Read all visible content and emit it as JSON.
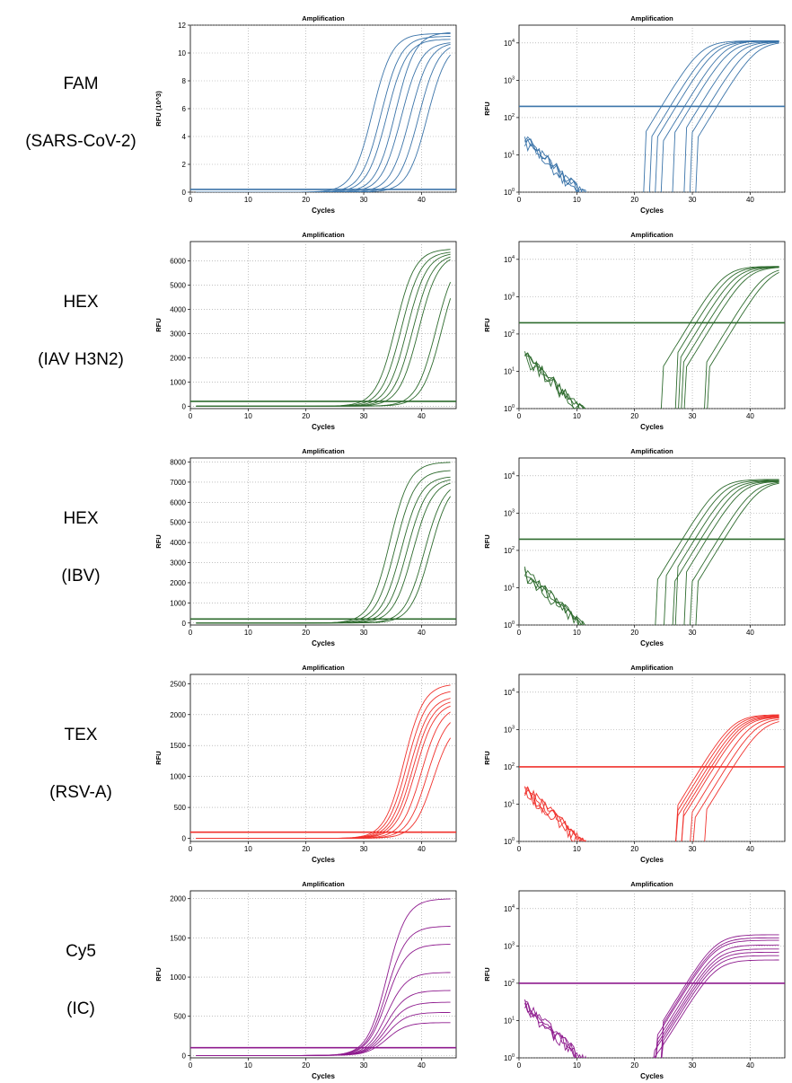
{
  "rows": [
    {
      "dye": "FAM",
      "target": "(SARS-CoV-2)"
    },
    {
      "dye": "HEX",
      "target": "(IAV H3N2)"
    },
    {
      "dye": "HEX",
      "target": "(IBV)"
    },
    {
      "dye": "TEX",
      "target": "(RSV-A)"
    },
    {
      "dye": "Cy5",
      "target": "(IC)"
    }
  ],
  "chart_data": [
    {
      "type": "line",
      "title": "Amplification",
      "xlabel": "Cycles",
      "ylabel": "RFU (10^3)",
      "scale": "linear",
      "xlim": [
        0,
        46
      ],
      "ylim": [
        0,
        12
      ],
      "xticks": [
        0,
        10,
        20,
        30,
        40
      ],
      "yticks": [
        0,
        2,
        4,
        6,
        8,
        10,
        12
      ],
      "color": "#3b74a9",
      "threshold": 0.2,
      "series": [
        {
          "ct": 31.5,
          "max": 11.4
        },
        {
          "ct": 33,
          "max": 11.2
        },
        {
          "ct": 34,
          "max": 11.0
        },
        {
          "ct": 35.5,
          "max": 11.5
        },
        {
          "ct": 36.5,
          "max": 10.8
        },
        {
          "ct": 38,
          "max": 10.8
        },
        {
          "ct": 39.5,
          "max": 10.8
        },
        {
          "ct": 41,
          "max": 10.8
        }
      ]
    },
    {
      "type": "line",
      "title": "Amplification",
      "xlabel": "Cycles",
      "ylabel": "RFU",
      "scale": "log",
      "xlim": [
        0,
        46
      ],
      "ylim": [
        1,
        30000
      ],
      "xticks": [
        0,
        10,
        20,
        30,
        40
      ],
      "yticks": [
        1,
        10,
        100,
        1000,
        10000
      ],
      "color": "#3b74a9",
      "threshold": 200,
      "series": [
        {
          "ct": 31.5,
          "max": 11400
        },
        {
          "ct": 33,
          "max": 11200
        },
        {
          "ct": 34,
          "max": 11000
        },
        {
          "ct": 35.5,
          "max": 11500
        },
        {
          "ct": 36.5,
          "max": 10800
        },
        {
          "ct": 38,
          "max": 10800
        },
        {
          "ct": 39.5,
          "max": 10800
        },
        {
          "ct": 41,
          "max": 10800
        }
      ]
    },
    {
      "type": "line",
      "title": "Amplification",
      "xlabel": "Cycles",
      "ylabel": "RFU",
      "scale": "linear",
      "xlim": [
        0,
        46
      ],
      "ylim": [
        -100,
        6800
      ],
      "xticks": [
        0,
        10,
        20,
        30,
        40
      ],
      "yticks": [
        0,
        1000,
        2000,
        3000,
        4000,
        5000,
        6000
      ],
      "color": "#2e6b2e",
      "threshold": 200,
      "series": [
        {
          "ct": 35.5,
          "max": 6500
        },
        {
          "ct": 36.5,
          "max": 6400
        },
        {
          "ct": 37.5,
          "max": 6350
        },
        {
          "ct": 38.5,
          "max": 6300
        },
        {
          "ct": 39.5,
          "max": 6300
        },
        {
          "ct": 42.5,
          "max": 6300
        },
        {
          "ct": 43.5,
          "max": 6300
        }
      ]
    },
    {
      "type": "line",
      "title": "Amplification",
      "xlabel": "Cycles",
      "ylabel": "RFU",
      "scale": "log",
      "xlim": [
        0,
        46
      ],
      "ylim": [
        1,
        30000
      ],
      "xticks": [
        0,
        10,
        20,
        30,
        40
      ],
      "yticks": [
        1,
        10,
        100,
        1000,
        10000
      ],
      "color": "#2e6b2e",
      "threshold": 200,
      "series": [
        {
          "ct": 35.5,
          "max": 6500
        },
        {
          "ct": 36.5,
          "max": 6400
        },
        {
          "ct": 37.5,
          "max": 6350
        },
        {
          "ct": 38.5,
          "max": 6300
        },
        {
          "ct": 39.5,
          "max": 6300
        },
        {
          "ct": 42.5,
          "max": 6300
        },
        {
          "ct": 43.5,
          "max": 6300
        }
      ]
    },
    {
      "type": "line",
      "title": "Amplification",
      "xlabel": "Cycles",
      "ylabel": "RFU",
      "scale": "linear",
      "xlim": [
        0,
        46
      ],
      "ylim": [
        -100,
        8200
      ],
      "xticks": [
        0,
        10,
        20,
        30,
        40
      ],
      "yticks": [
        0,
        1000,
        2000,
        3000,
        4000,
        5000,
        6000,
        7000,
        8000
      ],
      "color": "#2e6b2e",
      "threshold": 200,
      "series": [
        {
          "ct": 34.5,
          "max": 8000
        },
        {
          "ct": 35.5,
          "max": 7600
        },
        {
          "ct": 36.5,
          "max": 7300
        },
        {
          "ct": 37.5,
          "max": 7200
        },
        {
          "ct": 38.5,
          "max": 7100
        },
        {
          "ct": 40.5,
          "max": 7100
        },
        {
          "ct": 41.5,
          "max": 7100
        }
      ]
    },
    {
      "type": "line",
      "title": "Amplification",
      "xlabel": "Cycles",
      "ylabel": "RFU",
      "scale": "log",
      "xlim": [
        0,
        46
      ],
      "ylim": [
        1,
        30000
      ],
      "xticks": [
        0,
        10,
        20,
        30,
        40
      ],
      "yticks": [
        1,
        10,
        100,
        1000,
        10000
      ],
      "color": "#2e6b2e",
      "threshold": 200,
      "series": [
        {
          "ct": 34.5,
          "max": 8000
        },
        {
          "ct": 35.5,
          "max": 7600
        },
        {
          "ct": 36.5,
          "max": 7300
        },
        {
          "ct": 37.5,
          "max": 7200
        },
        {
          "ct": 38.5,
          "max": 7100
        },
        {
          "ct": 40.5,
          "max": 7100
        },
        {
          "ct": 41.5,
          "max": 7100
        }
      ]
    },
    {
      "type": "line",
      "title": "Amplification",
      "xlabel": "Cycles",
      "ylabel": "RFU",
      "scale": "linear",
      "xlim": [
        0,
        46
      ],
      "ylim": [
        -50,
        2650
      ],
      "xticks": [
        0,
        10,
        20,
        30,
        40
      ],
      "yticks": [
        0,
        500,
        1000,
        1500,
        2000,
        2500
      ],
      "color": "#f0322d",
      "threshold": 100,
      "series": [
        {
          "ct": 37,
          "max": 2500
        },
        {
          "ct": 37.5,
          "max": 2400
        },
        {
          "ct": 38,
          "max": 2300
        },
        {
          "ct": 38.5,
          "max": 2250
        },
        {
          "ct": 39,
          "max": 2200
        },
        {
          "ct": 40,
          "max": 2150
        },
        {
          "ct": 41,
          "max": 2050
        },
        {
          "ct": 42,
          "max": 1900
        }
      ]
    },
    {
      "type": "line",
      "title": "Amplification",
      "xlabel": "Cycles",
      "ylabel": "RFU",
      "scale": "log",
      "xlim": [
        0,
        46
      ],
      "ylim": [
        1,
        30000
      ],
      "xticks": [
        0,
        10,
        20,
        30,
        40
      ],
      "yticks": [
        1,
        10,
        100,
        1000,
        10000
      ],
      "color": "#f0322d",
      "threshold": 100,
      "series": [
        {
          "ct": 37,
          "max": 2500
        },
        {
          "ct": 37.5,
          "max": 2400
        },
        {
          "ct": 38,
          "max": 2300
        },
        {
          "ct": 38.5,
          "max": 2250
        },
        {
          "ct": 39,
          "max": 2200
        },
        {
          "ct": 40,
          "max": 2150
        },
        {
          "ct": 41,
          "max": 2050
        },
        {
          "ct": 42,
          "max": 1900
        }
      ]
    },
    {
      "type": "line",
      "title": "Amplification",
      "xlabel": "Cycles",
      "ylabel": "RFU",
      "scale": "linear",
      "xlim": [
        0,
        46
      ],
      "ylim": [
        -30,
        2100
      ],
      "xticks": [
        0,
        10,
        20,
        30,
        40
      ],
      "yticks": [
        0,
        500,
        1000,
        1500,
        2000
      ],
      "color": "#8e1b8e",
      "threshold": 100,
      "series": [
        {
          "ct": 34,
          "max": 2000
        },
        {
          "ct": 34,
          "max": 1650
        },
        {
          "ct": 34,
          "max": 1420
        },
        {
          "ct": 34,
          "max": 1060
        },
        {
          "ct": 34,
          "max": 830
        },
        {
          "ct": 34,
          "max": 680
        },
        {
          "ct": 34,
          "max": 550
        },
        {
          "ct": 34,
          "max": 420
        }
      ]
    },
    {
      "type": "line",
      "title": "Amplification",
      "xlabel": "Cycles",
      "ylabel": "RFU",
      "scale": "log",
      "xlim": [
        0,
        46
      ],
      "ylim": [
        1,
        30000
      ],
      "xticks": [
        0,
        10,
        20,
        30,
        40
      ],
      "yticks": [
        1,
        10,
        100,
        1000,
        10000
      ],
      "color": "#8e1b8e",
      "threshold": 100,
      "series": [
        {
          "ct": 34,
          "max": 2000
        },
        {
          "ct": 34,
          "max": 1650
        },
        {
          "ct": 34,
          "max": 1420
        },
        {
          "ct": 34,
          "max": 1060
        },
        {
          "ct": 34,
          "max": 830
        },
        {
          "ct": 34,
          "max": 680
        },
        {
          "ct": 34,
          "max": 550
        },
        {
          "ct": 34,
          "max": 420
        }
      ]
    }
  ]
}
